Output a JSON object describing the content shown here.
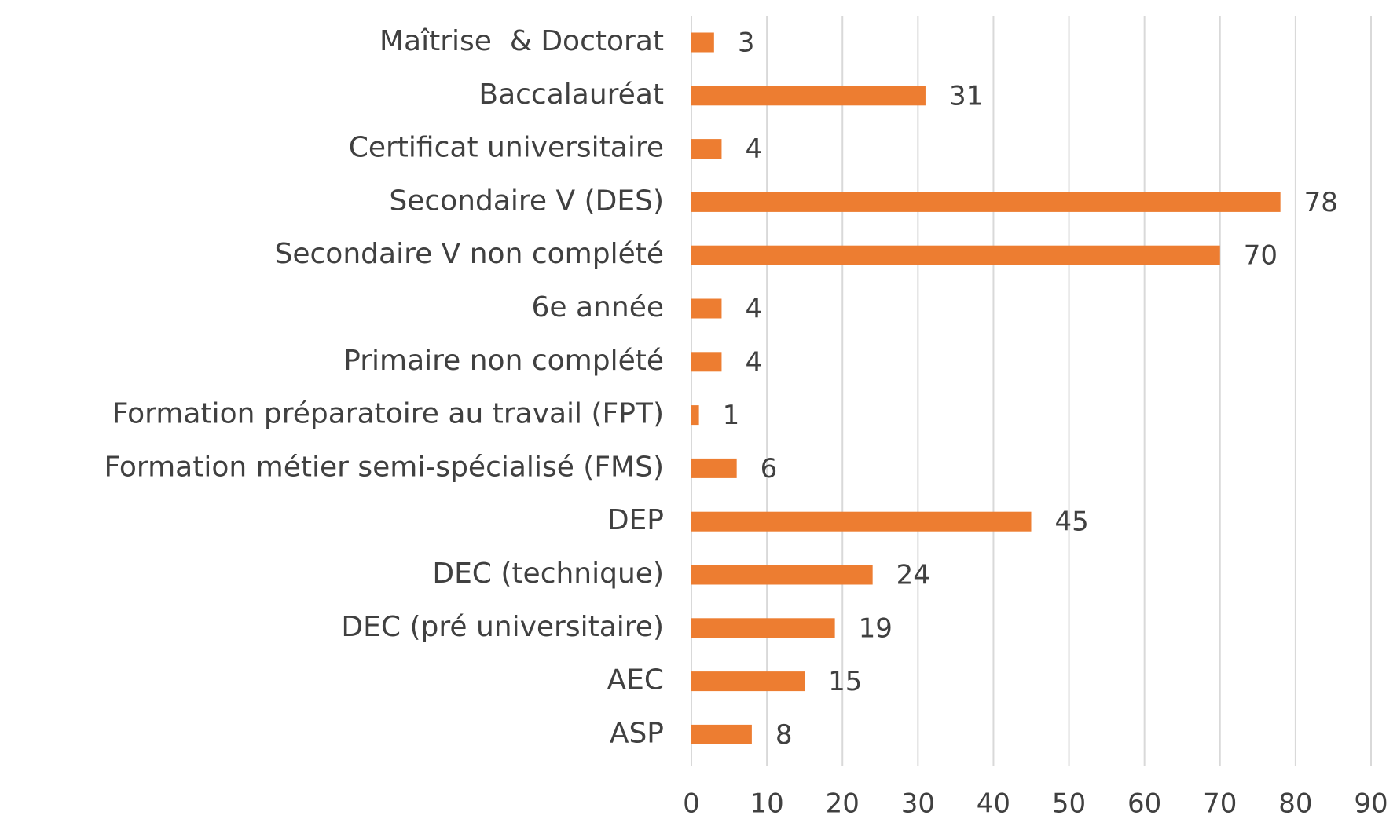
{
  "chart_data": {
    "type": "bar",
    "orientation": "horizontal",
    "categories": [
      "Maîtrise  & Doctorat",
      "Baccalauréat",
      "Certificat universitaire",
      "Secondaire V (DES)",
      "Secondaire V non complété",
      "6e année",
      "Primaire non complété",
      "Formation préparatoire au travail (FPT)",
      "Formation métier semi-spécialisé (FMS)",
      "DEP",
      "DEC (technique)",
      "DEC (pré universitaire)",
      "AEC",
      "ASP"
    ],
    "values": [
      3,
      31,
      4,
      78,
      70,
      4,
      4,
      1,
      6,
      45,
      24,
      19,
      15,
      8
    ],
    "color": "#ed7d31",
    "xlim": [
      0,
      90
    ],
    "xticks": [
      0,
      10,
      20,
      30,
      40,
      50,
      60,
      70,
      80,
      90
    ],
    "grid": true
  }
}
